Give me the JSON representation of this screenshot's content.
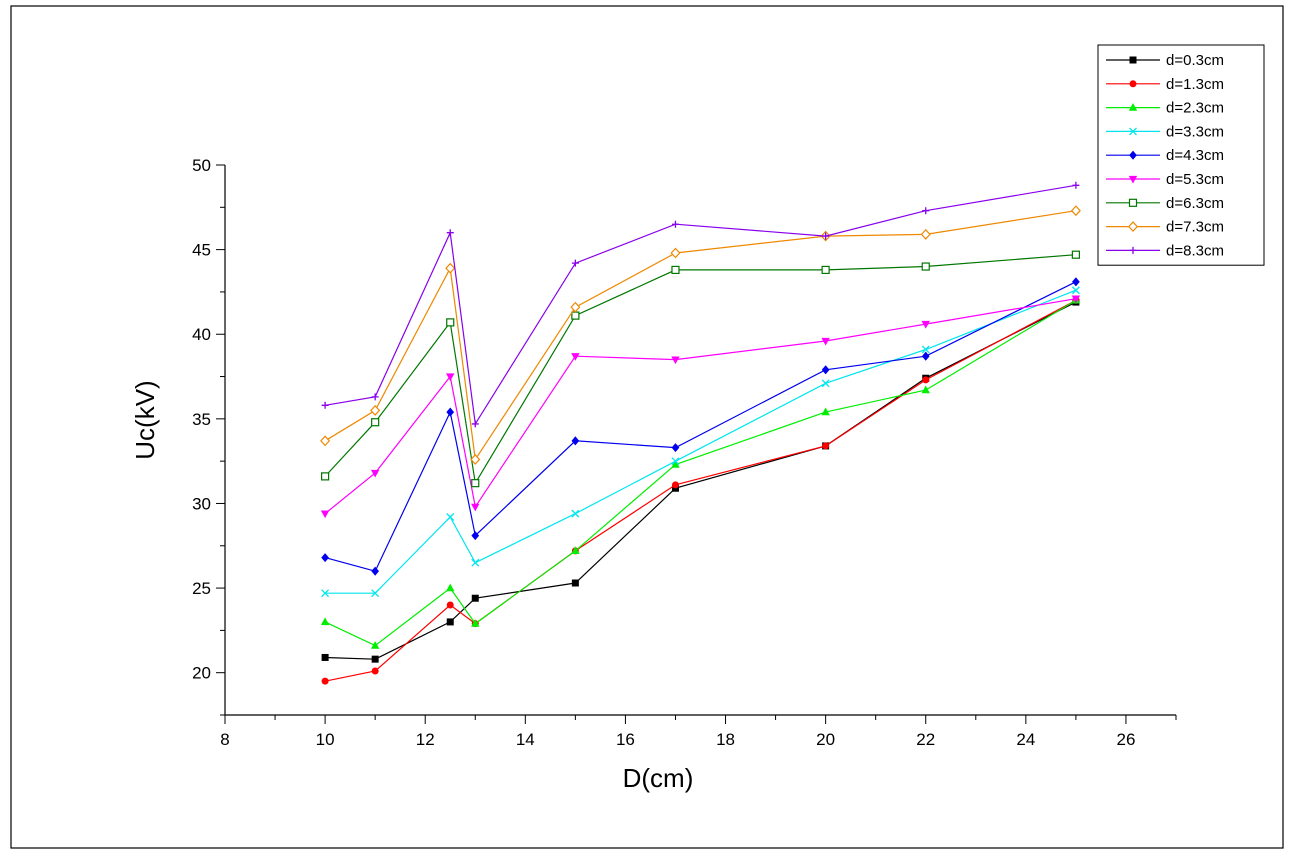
{
  "chart_data": {
    "type": "line",
    "xlabel": "D(cm)",
    "ylabel": "Uc(kV)",
    "xlim": [
      8,
      27
    ],
    "ylim": [
      17.5,
      50
    ],
    "x_ticks": [
      "8",
      "10",
      "12",
      "14",
      "16",
      "18",
      "20",
      "22",
      "24",
      "26"
    ],
    "y_ticks": [
      "20",
      "25",
      "30",
      "35",
      "40",
      "45",
      "50"
    ],
    "grid": false,
    "legend_position": "top-right",
    "x": [
      10,
      11,
      12.5,
      13,
      15,
      17,
      20,
      22,
      25
    ],
    "series": [
      {
        "name": "d=0.3cm",
        "color": "#000000",
        "marker": "square",
        "values": [
          20.9,
          20.8,
          23.0,
          24.4,
          25.3,
          30.9,
          33.4,
          37.4,
          41.9
        ]
      },
      {
        "name": "d=1.3cm",
        "color": "#ff0000",
        "marker": "circle",
        "values": [
          19.5,
          20.1,
          24.0,
          22.9,
          27.2,
          31.1,
          33.4,
          37.3,
          42.0
        ]
      },
      {
        "name": "d=2.3cm",
        "color": "#00ee00",
        "marker": "triangle-up",
        "values": [
          23.0,
          21.6,
          25.0,
          22.9,
          27.2,
          32.3,
          35.4,
          36.7,
          42.0
        ]
      },
      {
        "name": "d=3.3cm",
        "color": "#00e5ee",
        "marker": "x",
        "values": [
          24.7,
          24.7,
          29.2,
          26.5,
          29.4,
          32.5,
          37.1,
          39.1,
          42.6
        ]
      },
      {
        "name": "d=4.3cm",
        "color": "#0000ee",
        "marker": "diamond",
        "values": [
          26.8,
          26.0,
          35.4,
          28.1,
          33.7,
          33.3,
          37.9,
          38.7,
          43.1
        ]
      },
      {
        "name": "d=5.3cm",
        "color": "#ff00ff",
        "marker": "triangle-down",
        "values": [
          29.4,
          31.8,
          37.5,
          29.8,
          38.7,
          38.5,
          39.6,
          40.6,
          42.1
        ]
      },
      {
        "name": "d=6.3cm",
        "color": "#007700",
        "marker": "open-square",
        "values": [
          31.6,
          34.8,
          40.7,
          31.2,
          41.1,
          43.8,
          43.8,
          44.0,
          44.7
        ]
      },
      {
        "name": "d=7.3cm",
        "color": "#ee8800",
        "marker": "open-diamond",
        "values": [
          33.7,
          35.5,
          43.9,
          32.6,
          41.6,
          44.8,
          45.8,
          45.9,
          47.3
        ]
      },
      {
        "name": "d=8.3cm",
        "color": "#8800ee",
        "marker": "plus",
        "values": [
          35.8,
          36.3,
          46.0,
          34.7,
          44.2,
          46.5,
          45.8,
          47.3,
          48.8
        ]
      }
    ]
  }
}
